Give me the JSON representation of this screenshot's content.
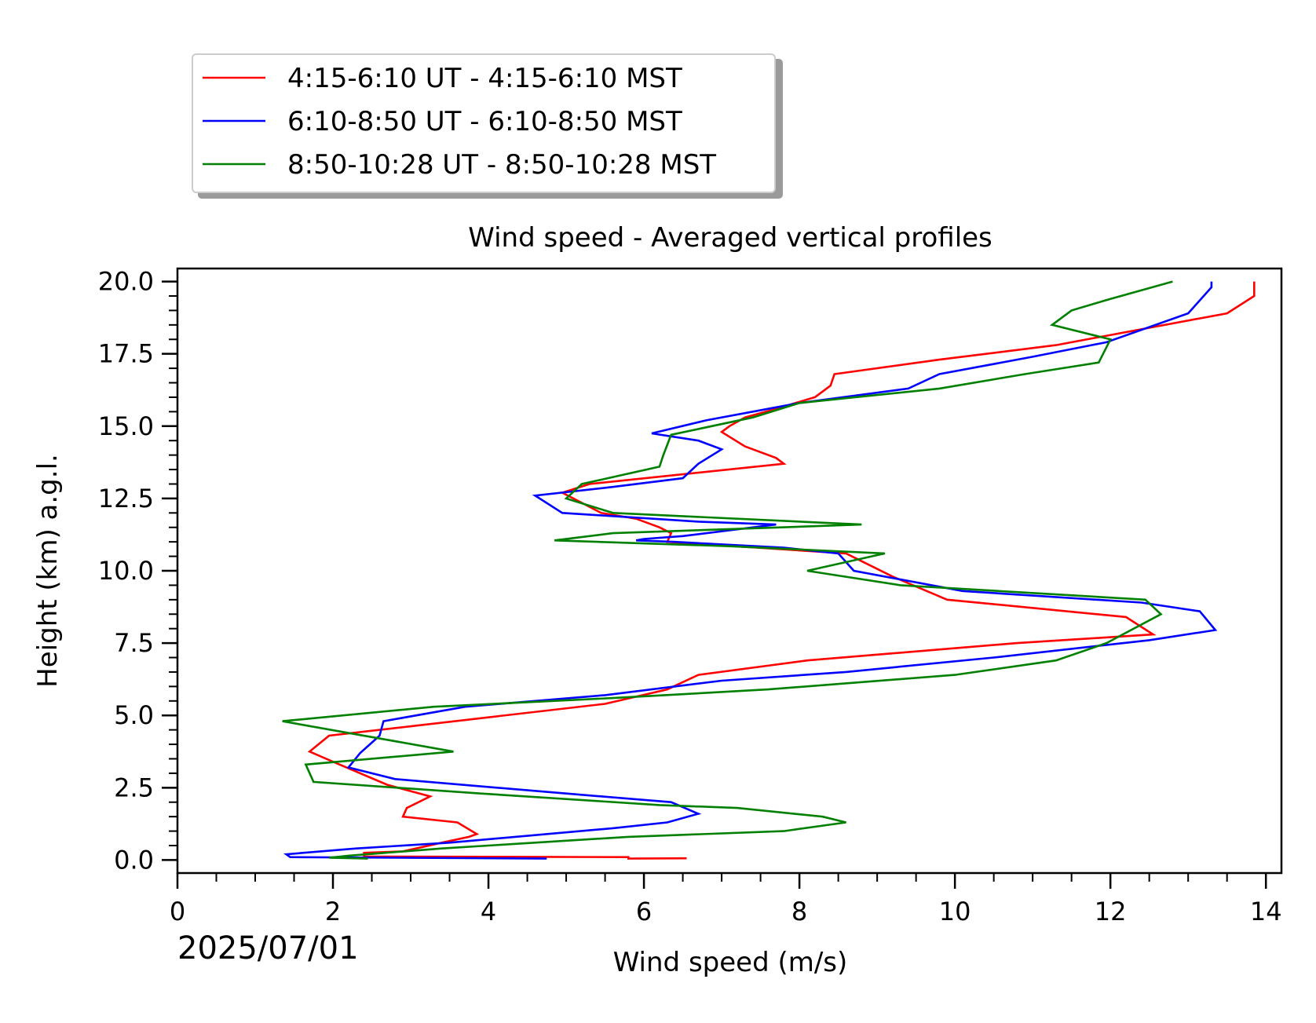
{
  "chart_data": {
    "type": "line",
    "title": "Wind speed - Averaged vertical profiles",
    "xlabel": "Wind speed (m/s)",
    "ylabel": "Height (km) a.g.l.",
    "date_label": "2025/07/01",
    "xlim": [
      0,
      14.2
    ],
    "ylim": [
      -0.45,
      20.45
    ],
    "xticks": [
      0,
      2,
      4,
      6,
      8,
      10,
      12,
      14
    ],
    "xtick_labels": [
      "0",
      "2",
      "4",
      "6",
      "8",
      "10",
      "12",
      "14"
    ],
    "yticks": [
      0,
      2.5,
      5,
      7.5,
      10,
      12.5,
      15,
      17.5,
      20
    ],
    "ytick_labels": [
      "0.0",
      "2.5",
      "5.0",
      "7.5",
      "10.0",
      "12.5",
      "15.0",
      "17.5",
      "20.0"
    ],
    "grid": false,
    "legend_position": "above-left",
    "series": [
      {
        "name": "4:15-6:10 UT - 4:15-6:10 MST",
        "color": "#ff0000",
        "points": [
          [
            6.55,
            0.06
          ],
          [
            5.8,
            0.05
          ],
          [
            5.8,
            0.1
          ],
          [
            2.4,
            0.12
          ],
          [
            2.4,
            0.25
          ],
          [
            2.9,
            0.3
          ],
          [
            3.4,
            0.6
          ],
          [
            3.75,
            0.8
          ],
          [
            3.85,
            0.9
          ],
          [
            3.6,
            1.3
          ],
          [
            2.9,
            1.5
          ],
          [
            2.95,
            1.8
          ],
          [
            3.25,
            2.2
          ],
          [
            2.7,
            2.6
          ],
          [
            2.0,
            3.4
          ],
          [
            1.7,
            3.75
          ],
          [
            1.95,
            4.3
          ],
          [
            5.5,
            5.4
          ],
          [
            6.3,
            5.9
          ],
          [
            6.7,
            6.4
          ],
          [
            8.1,
            6.9
          ],
          [
            10.8,
            7.5
          ],
          [
            12.55,
            7.8
          ],
          [
            12.2,
            8.4
          ],
          [
            9.9,
            9.0
          ],
          [
            9.2,
            9.8
          ],
          [
            8.6,
            10.6
          ],
          [
            6.3,
            11.0
          ],
          [
            6.35,
            11.3
          ],
          [
            6.2,
            11.5
          ],
          [
            5.9,
            11.8
          ],
          [
            5.45,
            12.0
          ],
          [
            4.95,
            12.7
          ],
          [
            5.3,
            13.0
          ],
          [
            7.8,
            13.7
          ],
          [
            7.7,
            13.9
          ],
          [
            7.3,
            14.3
          ],
          [
            7.0,
            14.8
          ],
          [
            7.1,
            15.0
          ],
          [
            7.3,
            15.3
          ],
          [
            7.7,
            15.6
          ],
          [
            8.2,
            16.0
          ],
          [
            8.4,
            16.4
          ],
          [
            8.45,
            16.8
          ],
          [
            9.8,
            17.3
          ],
          [
            11.3,
            17.8
          ],
          [
            13.5,
            18.9
          ],
          [
            13.85,
            19.5
          ],
          [
            13.85,
            20.0
          ]
        ]
      },
      {
        "name": "6:10-8:50 UT - 6:10-8:50 MST",
        "color": "#0000ff",
        "points": [
          [
            4.75,
            0.05
          ],
          [
            1.45,
            0.1
          ],
          [
            1.4,
            0.2
          ],
          [
            2.3,
            0.4
          ],
          [
            3.5,
            0.6
          ],
          [
            5.6,
            1.1
          ],
          [
            6.3,
            1.3
          ],
          [
            6.7,
            1.6
          ],
          [
            6.35,
            2.0
          ],
          [
            5.0,
            2.3
          ],
          [
            2.8,
            2.8
          ],
          [
            2.2,
            3.2
          ],
          [
            2.35,
            3.7
          ],
          [
            2.6,
            4.3
          ],
          [
            2.65,
            4.8
          ],
          [
            3.7,
            5.3
          ],
          [
            5.5,
            5.7
          ],
          [
            7.0,
            6.2
          ],
          [
            8.6,
            6.5
          ],
          [
            10.5,
            7.0
          ],
          [
            12.5,
            7.6
          ],
          [
            13.35,
            7.95
          ],
          [
            13.15,
            8.6
          ],
          [
            12.4,
            8.9
          ],
          [
            10.1,
            9.3
          ],
          [
            8.7,
            10.0
          ],
          [
            8.5,
            10.6
          ],
          [
            7.8,
            10.8
          ],
          [
            6.4,
            11.0
          ],
          [
            5.9,
            11.05
          ],
          [
            6.0,
            11.1
          ],
          [
            6.5,
            11.2
          ],
          [
            7.7,
            11.6
          ],
          [
            6.7,
            11.7
          ],
          [
            4.95,
            12.0
          ],
          [
            4.6,
            12.6
          ],
          [
            5.6,
            12.9
          ],
          [
            6.5,
            13.2
          ],
          [
            6.7,
            13.7
          ],
          [
            7.0,
            14.2
          ],
          [
            6.7,
            14.5
          ],
          [
            6.1,
            14.75
          ],
          [
            6.8,
            15.2
          ],
          [
            8.0,
            15.8
          ],
          [
            9.4,
            16.3
          ],
          [
            9.8,
            16.8
          ],
          [
            11.0,
            17.4
          ],
          [
            11.95,
            17.9
          ],
          [
            13.0,
            18.9
          ],
          [
            13.3,
            19.8
          ],
          [
            13.3,
            20.0
          ]
        ]
      },
      {
        "name": "8:50-10:28 UT - 8:50-10:28 MST",
        "color": "#008000",
        "points": [
          [
            2.45,
            0.05
          ],
          [
            1.95,
            0.08
          ],
          [
            2.2,
            0.15
          ],
          [
            3.4,
            0.4
          ],
          [
            5.8,
            0.8
          ],
          [
            7.8,
            1.0
          ],
          [
            8.6,
            1.3
          ],
          [
            8.3,
            1.5
          ],
          [
            7.2,
            1.8
          ],
          [
            6.2,
            1.9
          ],
          [
            3.9,
            2.3
          ],
          [
            1.75,
            2.7
          ],
          [
            1.65,
            3.3
          ],
          [
            3.55,
            3.75
          ],
          [
            1.35,
            4.8
          ],
          [
            3.3,
            5.3
          ],
          [
            5.6,
            5.6
          ],
          [
            7.6,
            5.9
          ],
          [
            10.0,
            6.4
          ],
          [
            11.3,
            6.9
          ],
          [
            11.95,
            7.5
          ],
          [
            12.65,
            8.5
          ],
          [
            12.45,
            9.0
          ],
          [
            9.3,
            9.5
          ],
          [
            8.1,
            10.0
          ],
          [
            9.1,
            10.6
          ],
          [
            7.1,
            10.85
          ],
          [
            4.85,
            11.05
          ],
          [
            5.6,
            11.3
          ],
          [
            8.8,
            11.6
          ],
          [
            5.6,
            12.0
          ],
          [
            5.0,
            12.5
          ],
          [
            5.2,
            13.0
          ],
          [
            6.2,
            13.6
          ],
          [
            6.25,
            14.0
          ],
          [
            6.35,
            14.7
          ],
          [
            7.4,
            15.3
          ],
          [
            8.0,
            15.8
          ],
          [
            9.8,
            16.3
          ],
          [
            10.9,
            16.8
          ],
          [
            11.85,
            17.2
          ],
          [
            12.0,
            18.0
          ],
          [
            11.25,
            18.5
          ],
          [
            11.5,
            19.0
          ],
          [
            12.0,
            19.4
          ],
          [
            12.8,
            20.0
          ]
        ]
      }
    ]
  }
}
